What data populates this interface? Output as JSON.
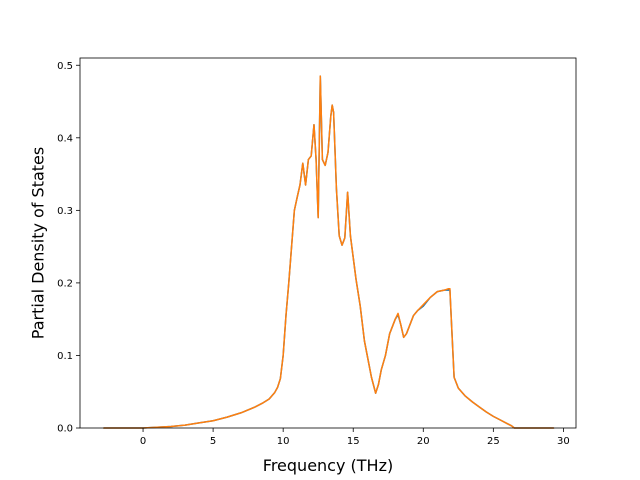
{
  "chart_data": {
    "type": "line",
    "xlabel": "Frequency (THz)",
    "ylabel": "Partial Density of States",
    "xlim": [
      -4.5,
      30.9
    ],
    "ylim": [
      0.0,
      0.51
    ],
    "xticks": [
      0,
      5,
      10,
      15,
      20,
      25,
      30
    ],
    "yticks": [
      0.0,
      0.1,
      0.2,
      0.3,
      0.4,
      0.5
    ],
    "xtick_labels": [
      "0",
      "5",
      "10",
      "15",
      "20",
      "25",
      "30"
    ],
    "ytick_labels": [
      "0.0",
      "0.1",
      "0.2",
      "0.3",
      "0.4",
      "0.5"
    ],
    "grid": false,
    "legend": "none",
    "series": [
      {
        "color": "#1f77b4",
        "x": [
          -2.8,
          -1.0,
          0.0,
          1.0,
          2.0,
          3.0,
          4.0,
          5.0,
          6.0,
          7.0,
          8.0,
          8.5,
          9.0,
          9.4,
          9.6,
          9.8,
          10.0,
          10.2,
          10.4,
          10.6,
          10.8,
          11.0,
          11.2,
          11.4,
          11.6,
          11.8,
          12.0,
          12.2,
          12.35,
          12.5,
          12.65,
          12.8,
          13.0,
          13.2,
          13.4,
          13.5,
          13.6,
          13.8,
          14.0,
          14.2,
          14.4,
          14.6,
          14.8,
          14.9,
          15.0,
          15.2,
          15.5,
          15.8,
          16.0,
          16.3,
          16.6,
          16.8,
          17.0,
          17.3,
          17.6,
          18.0,
          18.2,
          18.4,
          18.6,
          18.8,
          19.0,
          19.3,
          19.6,
          20.0,
          20.5,
          21.0,
          21.5,
          21.8,
          21.9,
          22.0,
          22.2,
          22.5,
          23.0,
          23.5,
          24.0,
          24.5,
          25.0,
          25.5,
          26.0,
          26.3,
          26.5,
          26.7,
          27.0,
          28.0,
          29.3
        ],
        "values": [
          0.0,
          0.0,
          0.0,
          0.001,
          0.002,
          0.004,
          0.007,
          0.01,
          0.015,
          0.021,
          0.029,
          0.034,
          0.04,
          0.049,
          0.056,
          0.068,
          0.1,
          0.155,
          0.2,
          0.25,
          0.3,
          0.318,
          0.335,
          0.365,
          0.335,
          0.37,
          0.375,
          0.418,
          0.37,
          0.29,
          0.485,
          0.37,
          0.362,
          0.38,
          0.43,
          0.445,
          0.435,
          0.33,
          0.265,
          0.252,
          0.262,
          0.325,
          0.265,
          0.25,
          0.235,
          0.205,
          0.168,
          0.12,
          0.1,
          0.07,
          0.048,
          0.06,
          0.08,
          0.1,
          0.13,
          0.15,
          0.156,
          0.142,
          0.125,
          0.13,
          0.14,
          0.155,
          0.162,
          0.168,
          0.18,
          0.188,
          0.19,
          0.19,
          0.19,
          0.15,
          0.07,
          0.055,
          0.044,
          0.036,
          0.029,
          0.022,
          0.016,
          0.011,
          0.006,
          0.003,
          0.0,
          0.0,
          0.0,
          0.0,
          0.0
        ]
      },
      {
        "color": "#ff7f0e",
        "x": [
          -2.8,
          -1.0,
          0.0,
          1.0,
          2.0,
          3.0,
          4.0,
          5.0,
          6.0,
          7.0,
          8.0,
          8.5,
          9.0,
          9.4,
          9.6,
          9.8,
          10.0,
          10.2,
          10.4,
          10.6,
          10.8,
          11.0,
          11.2,
          11.4,
          11.6,
          11.8,
          12.0,
          12.2,
          12.35,
          12.5,
          12.65,
          12.8,
          13.0,
          13.2,
          13.4,
          13.5,
          13.6,
          13.8,
          14.0,
          14.2,
          14.4,
          14.6,
          14.8,
          14.9,
          15.0,
          15.2,
          15.5,
          15.8,
          16.0,
          16.3,
          16.6,
          16.8,
          17.0,
          17.3,
          17.6,
          18.0,
          18.2,
          18.4,
          18.6,
          18.8,
          19.0,
          19.3,
          19.6,
          20.0,
          20.5,
          21.0,
          21.5,
          21.8,
          21.9,
          22.0,
          22.2,
          22.5,
          23.0,
          23.5,
          24.0,
          24.5,
          25.0,
          25.5,
          26.0,
          26.3,
          26.5,
          26.7,
          27.0,
          28.0,
          29.3
        ],
        "values": [
          0.0,
          0.0,
          0.0,
          0.001,
          0.002,
          0.004,
          0.007,
          0.01,
          0.015,
          0.021,
          0.029,
          0.034,
          0.04,
          0.049,
          0.056,
          0.068,
          0.1,
          0.155,
          0.2,
          0.25,
          0.3,
          0.318,
          0.335,
          0.365,
          0.335,
          0.37,
          0.375,
          0.418,
          0.37,
          0.29,
          0.485,
          0.37,
          0.362,
          0.38,
          0.43,
          0.445,
          0.435,
          0.33,
          0.265,
          0.252,
          0.262,
          0.325,
          0.265,
          0.25,
          0.235,
          0.205,
          0.168,
          0.12,
          0.1,
          0.07,
          0.048,
          0.06,
          0.08,
          0.1,
          0.13,
          0.15,
          0.158,
          0.142,
          0.125,
          0.13,
          0.14,
          0.155,
          0.162,
          0.17,
          0.18,
          0.188,
          0.19,
          0.192,
          0.192,
          0.15,
          0.07,
          0.055,
          0.044,
          0.036,
          0.029,
          0.022,
          0.016,
          0.011,
          0.006,
          0.003,
          0.0,
          0.0,
          0.0,
          0.0,
          0.0
        ]
      }
    ]
  }
}
